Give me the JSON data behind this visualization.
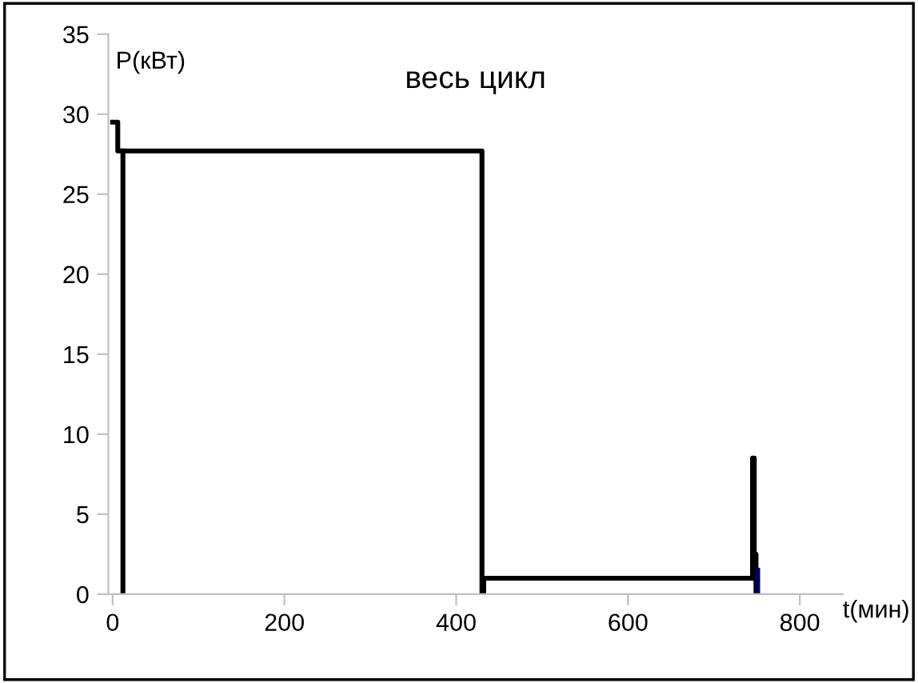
{
  "chart_data": {
    "type": "line",
    "title": "весь цикл",
    "xlabel": "t(мин)",
    "ylabel": "P(кВт)",
    "xlim": [
      -5,
      850
    ],
    "ylim": [
      0,
      35
    ],
    "xticks": [
      0,
      200,
      400,
      600,
      800
    ],
    "yticks": [
      0,
      5,
      10,
      15,
      20,
      25,
      30,
      35
    ],
    "grid": false,
    "legend": false,
    "marker": "none",
    "line_style": "solid",
    "series": [
      {
        "color": "#000000",
        "x": [
          0,
          6,
          6,
          430,
          430,
          432,
          432,
          745,
          745,
          747,
          747,
          749,
          749
        ],
        "values": [
          29.5,
          29.5,
          27.7,
          27.7,
          0,
          0,
          1,
          1,
          8.5,
          8.5,
          2.5,
          2.5,
          0
        ]
      },
      {
        "color": "#000000",
        "x": [
          12,
          12
        ],
        "values": [
          0,
          27.7
        ]
      },
      {
        "color": "#000060",
        "x": [
          751,
          751
        ],
        "values": [
          0,
          1.5
        ]
      }
    ]
  }
}
